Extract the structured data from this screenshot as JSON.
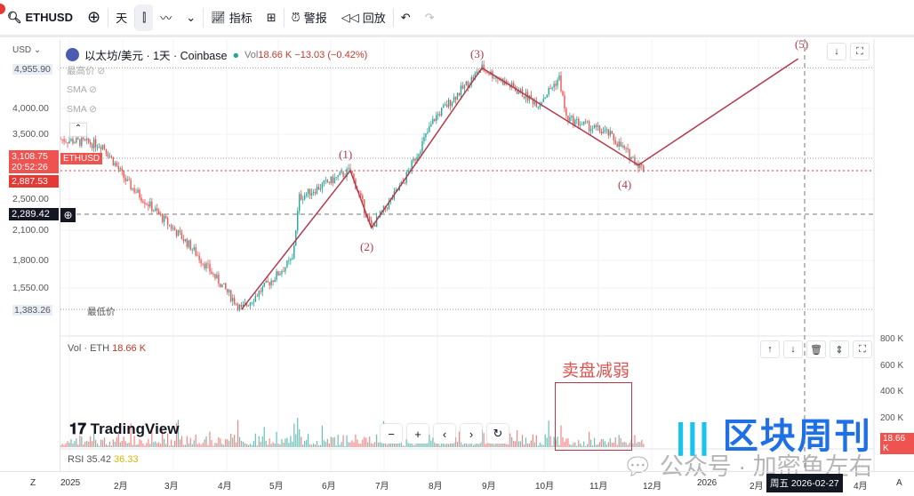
{
  "toolbar": {
    "symbol": "ETHUSD",
    "interval": "天",
    "indicators": "指标",
    "alerts": "警报",
    "replay": "回放",
    "icons": [
      "search-icon",
      "add-symbol-icon",
      "candles-icon",
      "line-chart-icon",
      "chevron-down-icon",
      "indicators-icon",
      "layout-icon",
      "alert-icon",
      "replay-icon",
      "undo-icon",
      "redo-icon"
    ]
  },
  "legend": {
    "currency": "USD",
    "title": "以太坊/美元 · 1天 · Coinbase",
    "vol_label": "Vol",
    "vol": "18.66 K",
    "change": "−13.03 (−0.42%)",
    "ind1": "最高价",
    "ind2": "SMA",
    "ind3": "SMA"
  },
  "price_axis": {
    "ticks": [
      "4,000.00",
      "3,500.00",
      "2,500.00",
      "2,100.00",
      "1,800.00",
      "1,550.00"
    ],
    "high": "4,955.90",
    "high_label": "最高价",
    "low": "1,383.26",
    "low_label": "最低价",
    "last": "3,108.75",
    "countdown": "20:52:26",
    "ticker_tag": "ETHUSD",
    "red_line": "2,887.53",
    "cursor": "2,289.42"
  },
  "volume": {
    "label": "Vol · ETH",
    "value": "18.66 K",
    "ticks": [
      "800 K",
      "600 K",
      "400 K",
      "200 K"
    ],
    "last": "18.66 K"
  },
  "rsi": {
    "label": "RSI",
    "v1": "35.42",
    "v2": "36.33"
  },
  "time_axis": {
    "ticks": [
      "2025",
      "2月",
      "3月",
      "4月",
      "5月",
      "6月",
      "7月",
      "8月",
      "9月",
      "10月",
      "11月",
      "12月",
      "2026",
      "2月",
      "4月"
    ],
    "cursor": "周五 2026-02-27",
    "left": "Z",
    "right": "A"
  },
  "annotation": {
    "label": "卖盘减弱"
  },
  "watermarks": {
    "tv": "TradingView",
    "brand": "区块周刊",
    "wechat": "公众号 · 加密鱼左右"
  },
  "colors": {
    "up": "#26a69a",
    "down": "#ef5350",
    "wave": "#b33a4a"
  },
  "chart_data": {
    "type": "candlestick",
    "scale": "log",
    "waves": [
      {
        "label": "(1)",
        "date": "2025-06-10",
        "price": 2880
      },
      {
        "label": "(2)",
        "date": "2025-06-22",
        "price": 2130
      },
      {
        "label": "(3)",
        "date": "2025-08-24",
        "price": 4955.9
      },
      {
        "label": "(4)",
        "date": "2025-11-21",
        "price": 2965
      },
      {
        "label": "(5)",
        "date": "2026-02-20",
        "price": 5200
      }
    ],
    "path": [
      [
        "2024-12-27",
        3400
      ],
      [
        "2025-01-20",
        3300
      ],
      [
        "2025-02-03",
        2700
      ],
      [
        "2025-03-10",
        1950
      ],
      [
        "2025-04-09",
        1383
      ],
      [
        "2025-05-08",
        1800
      ],
      [
        "2025-05-12",
        2500
      ],
      [
        "2025-06-10",
        2880
      ],
      [
        "2025-06-22",
        2130
      ],
      [
        "2025-07-10",
        2700
      ],
      [
        "2025-07-28",
        3800
      ],
      [
        "2025-08-24",
        4955
      ],
      [
        "2025-09-25",
        4100
      ],
      [
        "2025-10-07",
        4700
      ],
      [
        "2025-10-11",
        3800
      ],
      [
        "2025-11-04",
        3500
      ],
      [
        "2025-11-24",
        2900
      ]
    ]
  }
}
